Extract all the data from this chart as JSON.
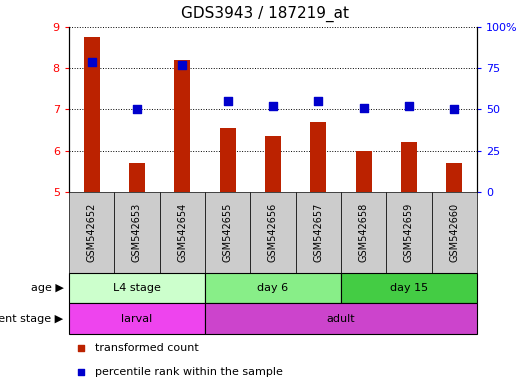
{
  "title": "GDS3943 / 187219_at",
  "samples": [
    "GSM542652",
    "GSM542653",
    "GSM542654",
    "GSM542655",
    "GSM542656",
    "GSM542657",
    "GSM542658",
    "GSM542659",
    "GSM542660"
  ],
  "transformed_count": [
    8.75,
    5.7,
    8.2,
    6.55,
    6.35,
    6.7,
    6.0,
    6.2,
    5.7
  ],
  "percentile_rank": [
    79,
    50,
    77,
    55,
    52,
    55,
    51,
    52,
    50
  ],
  "ylim_left": [
    5,
    9
  ],
  "ylim_right": [
    0,
    100
  ],
  "yticks_left": [
    5,
    6,
    7,
    8,
    9
  ],
  "yticks_right": [
    0,
    25,
    50,
    75,
    100
  ],
  "yticklabels_right": [
    "0",
    "25",
    "50",
    "75",
    "100%"
  ],
  "bar_color": "#bb2200",
  "dot_color": "#0000cc",
  "bar_width": 0.35,
  "dot_size": 30,
  "age_groups": [
    {
      "label": "L4 stage",
      "start": 0,
      "end": 3,
      "color": "#ccffcc"
    },
    {
      "label": "day 6",
      "start": 3,
      "end": 6,
      "color": "#88ee88"
    },
    {
      "label": "day 15",
      "start": 6,
      "end": 9,
      "color": "#44cc44"
    }
  ],
  "dev_groups": [
    {
      "label": "larval",
      "start": 0,
      "end": 3,
      "color": "#ee44ee"
    },
    {
      "label": "adult",
      "start": 3,
      "end": 9,
      "color": "#cc44cc"
    }
  ],
  "age_label": "age",
  "dev_label": "development stage",
  "legend_bar_label": "transformed count",
  "legend_dot_label": "percentile rank within the sample",
  "sample_area_color": "#cccccc",
  "title_fontsize": 11,
  "tick_fontsize": 8,
  "label_fontsize": 8,
  "sample_fontsize": 7
}
